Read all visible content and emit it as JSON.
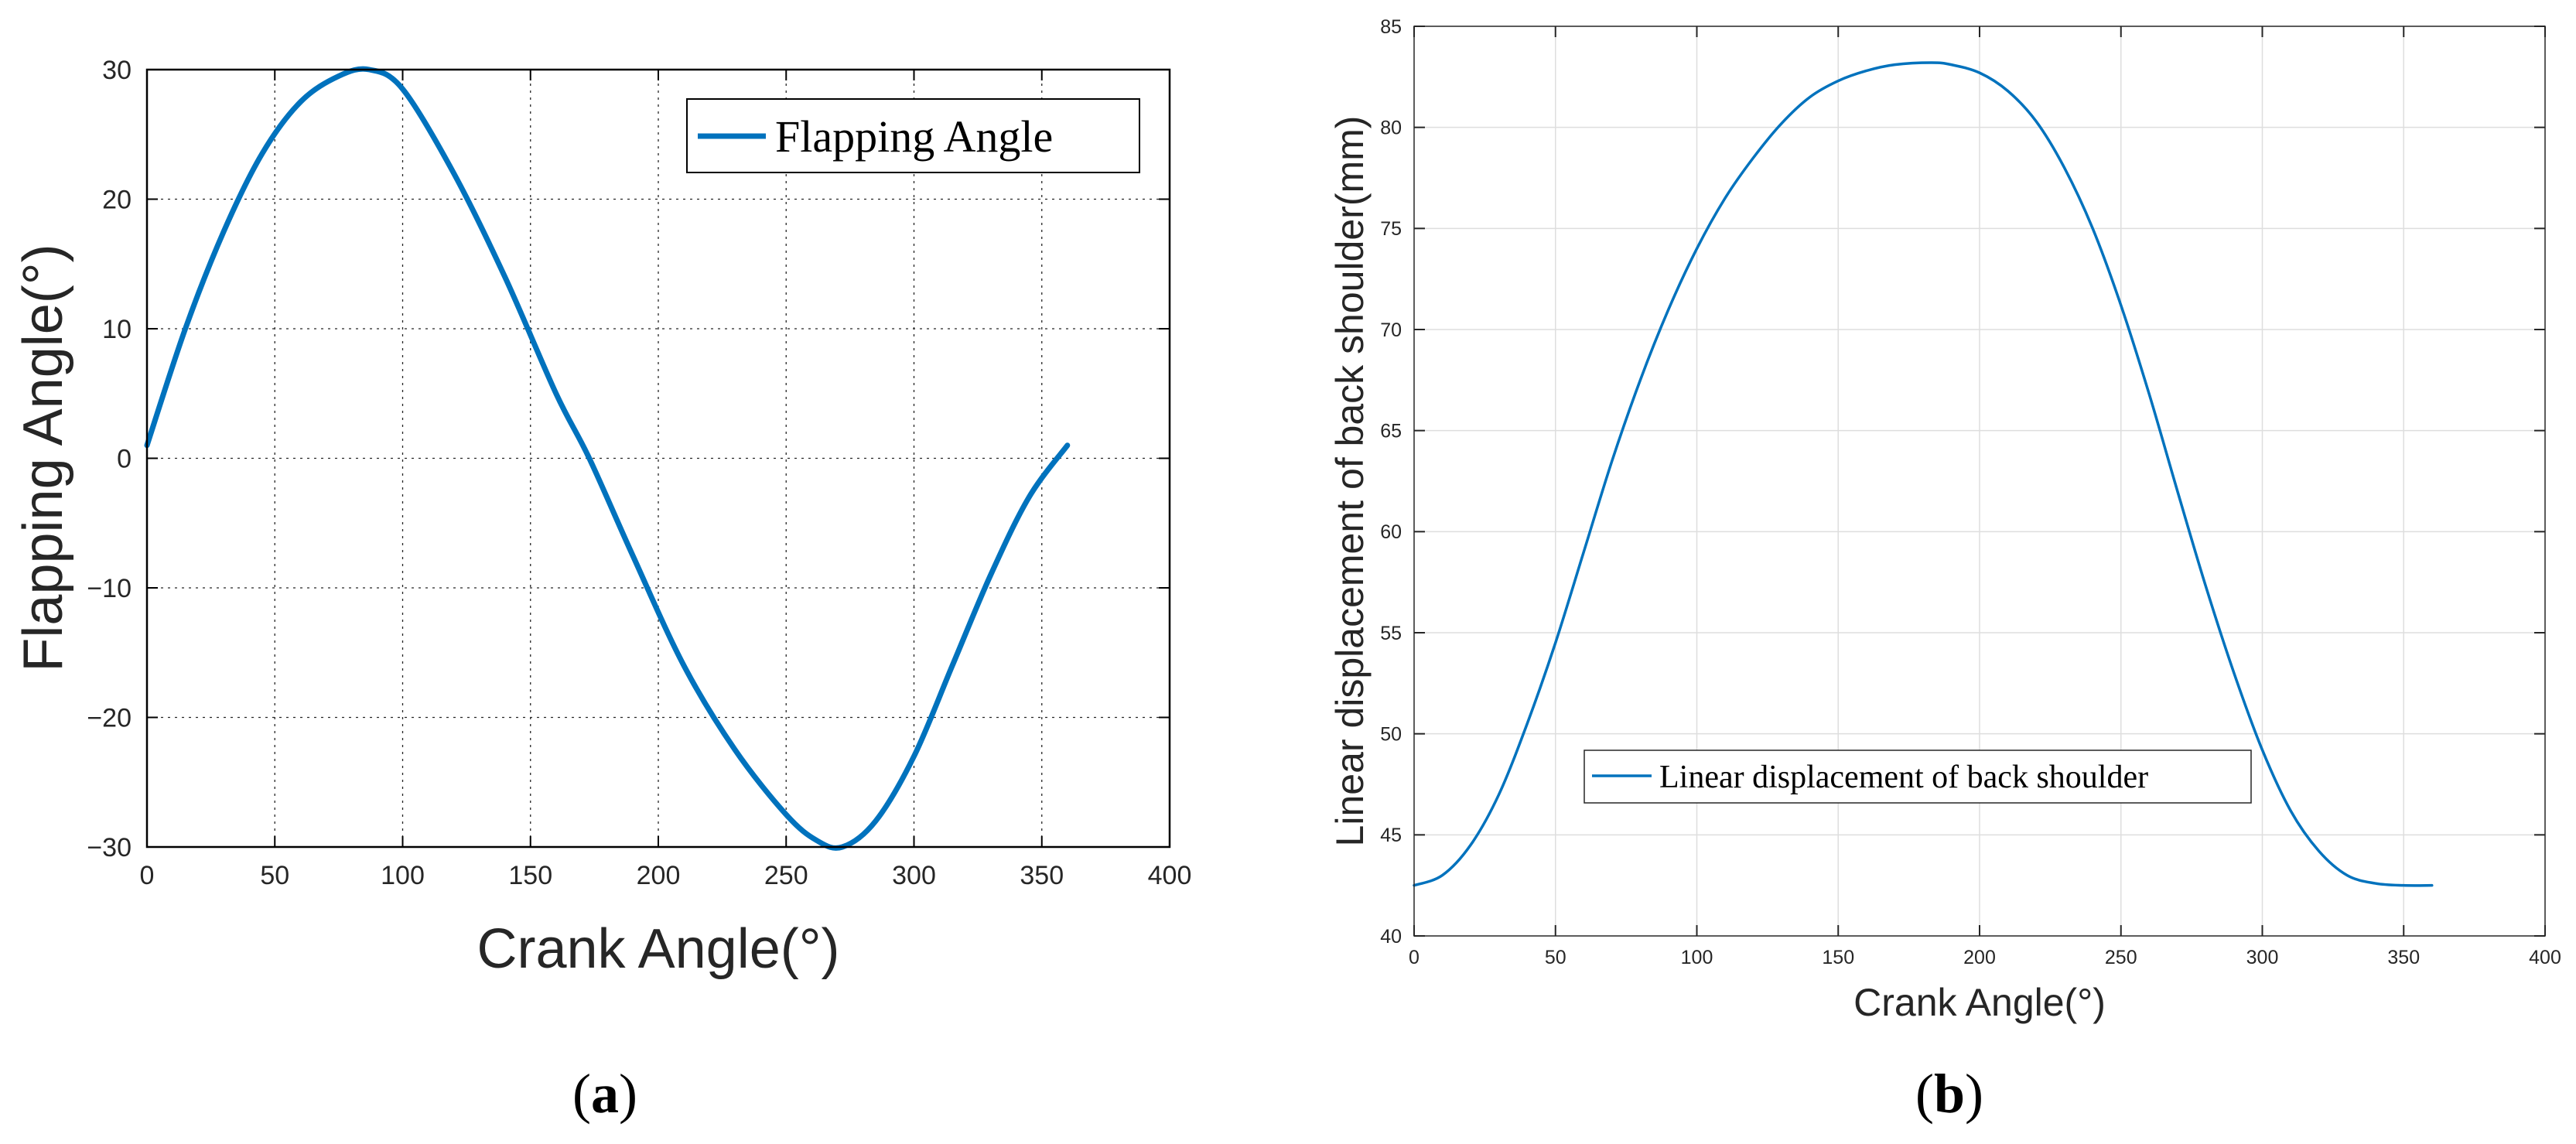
{
  "chart_data": [
    {
      "id": "a",
      "type": "line",
      "panel_label": "(a)",
      "panel_letter": "a",
      "xlabel": "Crank Angle(°)",
      "ylabel": "Flapping Angle(°)",
      "xlim": [
        0,
        400
      ],
      "ylim": [
        -30,
        30
      ],
      "xticks": [
        0,
        50,
        100,
        150,
        200,
        250,
        300,
        350,
        400
      ],
      "yticks": [
        -30,
        -20,
        -10,
        0,
        10,
        20,
        30
      ],
      "ytick_labels": [
        "−30",
        "−20",
        "−10",
        "0",
        "10",
        "20",
        "30"
      ],
      "grid": true,
      "legend": {
        "position": "top-right"
      },
      "series": [
        {
          "name": "Flapping Angle",
          "color": "#0072BD",
          "x": [
            0,
            15,
            30,
            45,
            60,
            75,
            87,
            100,
            120,
            140,
            160,
            173,
            190,
            210,
            230,
            250,
            262,
            272,
            285,
            300,
            315,
            330,
            345,
            360
          ],
          "y": [
            1,
            10,
            17.5,
            23.5,
            27.5,
            29.5,
            30,
            28.5,
            22,
            14,
            5,
            0,
            -7.5,
            -16,
            -22.5,
            -27.5,
            -29.5,
            -30,
            -28,
            -23,
            -16,
            -9,
            -3,
            1
          ]
        }
      ]
    },
    {
      "id": "b",
      "type": "line",
      "panel_label": "(b)",
      "panel_letter": "b",
      "xlabel": "Crank Angle(°)",
      "ylabel": "Linear displacement of back shoulder(mm)",
      "xlim": [
        0,
        400
      ],
      "ylim": [
        40,
        85
      ],
      "xticks": [
        0,
        50,
        100,
        150,
        200,
        250,
        300,
        350,
        400
      ],
      "yticks": [
        40,
        45,
        50,
        55,
        60,
        65,
        70,
        75,
        80,
        85
      ],
      "ytick_labels": [
        "40",
        "45",
        "50",
        "55",
        "60",
        "65",
        "70",
        "75",
        "80",
        "85"
      ],
      "grid": true,
      "legend": {
        "position": "lower-center"
      },
      "series": [
        {
          "name": "Linear displacement of back shoulder",
          "color": "#0072BD",
          "x": [
            0,
            10,
            20,
            30,
            40,
            50,
            60,
            70,
            80,
            90,
            100,
            110,
            120,
            130,
            140,
            150,
            160,
            170,
            183,
            190,
            200,
            210,
            220,
            230,
            240,
            250,
            260,
            270,
            280,
            290,
            300,
            310,
            320,
            330,
            340,
            350,
            360
          ],
          "y": [
            42.5,
            43,
            44.5,
            47,
            50.5,
            54.5,
            59,
            63.5,
            67.5,
            71,
            74,
            76.5,
            78.5,
            80.2,
            81.5,
            82.3,
            82.8,
            83.1,
            83.2,
            83.1,
            82.7,
            81.8,
            80.3,
            78,
            75,
            71.2,
            66.8,
            62,
            57.3,
            53,
            49.2,
            46.2,
            44.2,
            43,
            42.6,
            42.5,
            42.5
          ]
        }
      ]
    }
  ]
}
